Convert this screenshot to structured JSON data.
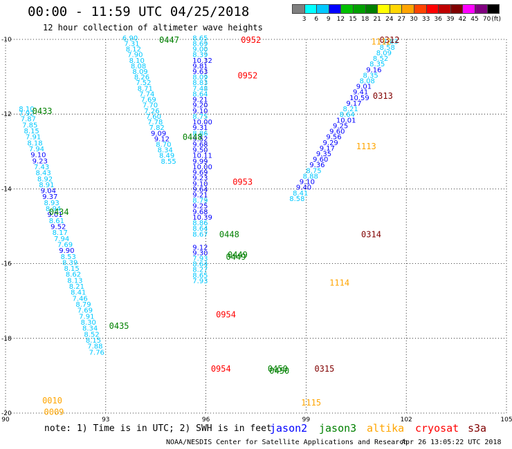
{
  "header": {
    "title": "00:00 - 11:59 UTC 04/25/2018",
    "subtitle": "12 hour collection of altimeter wave heights"
  },
  "legend": {
    "unit": "(ft)",
    "bins": [
      {
        "color": "#7f7f7f",
        "label": "3"
      },
      {
        "color": "#00ffff",
        "label": "6"
      },
      {
        "color": "#00c8ff",
        "label": "9"
      },
      {
        "color": "#0000ff",
        "label": "12"
      },
      {
        "color": "#00c000",
        "label": "15"
      },
      {
        "color": "#00a000",
        "label": "18"
      },
      {
        "color": "#008000",
        "label": "21"
      },
      {
        "color": "#ffff00",
        "label": "24"
      },
      {
        "color": "#ffd700",
        "label": "27"
      },
      {
        "color": "#ffa500",
        "label": "30"
      },
      {
        "color": "#ff4500",
        "label": "33"
      },
      {
        "color": "#ff0000",
        "label": "36"
      },
      {
        "color": "#c00000",
        "label": "39"
      },
      {
        "color": "#800000",
        "label": "42"
      },
      {
        "color": "#ff00ff",
        "label": "45"
      },
      {
        "color": "#800080",
        "label": "70"
      },
      {
        "color": "#000000",
        "label": ""
      }
    ]
  },
  "chart_data": {
    "type": "scatter",
    "title": "00:00 - 11:59 UTC 04/25/2018",
    "subtitle": "12 hour collection of altimeter wave heights",
    "xlim": [
      90,
      105
    ],
    "ylim": [
      -20,
      -10
    ],
    "x_ticks": [
      "90",
      "93",
      "96",
      "99",
      "102",
      "105"
    ],
    "y_ticks": [
      "-10",
      "-12",
      "-14",
      "-16",
      "-18",
      "-20"
    ],
    "colors": {
      "jason2": "#0000ff",
      "jason3": "#008000",
      "altika": "#ffa500",
      "cryosat": "#ff0000",
      "s3a": "#800000",
      "swh_low": "#00c8ff",
      "swh_mid": "#0000ff",
      "swh_high": "#00a000"
    },
    "time_labels": [
      {
        "text": "0447",
        "x": 94.6,
        "y": -10.0,
        "sat": "jason3"
      },
      {
        "text": "0952",
        "x": 97.05,
        "y": -10.0,
        "sat": "cryosat"
      },
      {
        "text": "0312",
        "x": 101.2,
        "y": -10.0,
        "sat": "s3a"
      },
      {
        "text": "1112",
        "x": 100.95,
        "y": -10.05,
        "sat": "altika"
      },
      {
        "text": "0952",
        "x": 96.95,
        "y": -10.95,
        "sat": "cryosat"
      },
      {
        "text": "0313",
        "x": 101.0,
        "y": -11.5,
        "sat": "s3a"
      },
      {
        "text": "0433",
        "x": 90.8,
        "y": -11.9,
        "sat": "jason3"
      },
      {
        "text": "0448",
        "x": 95.3,
        "y": -12.6,
        "sat": "jason3"
      },
      {
        "text": "1113",
        "x": 100.5,
        "y": -12.85,
        "sat": "altika"
      },
      {
        "text": "0953",
        "x": 96.8,
        "y": -13.8,
        "sat": "cryosat"
      },
      {
        "text": "0434",
        "x": 91.3,
        "y": -14.6,
        "sat": "jason3"
      },
      {
        "text": "0448",
        "x": 96.4,
        "y": -15.2,
        "sat": "jason3"
      },
      {
        "text": "0314",
        "x": 100.65,
        "y": -15.2,
        "sat": "s3a"
      },
      {
        "text": "0449",
        "x": 96.65,
        "y": -15.75,
        "sat": "jason3"
      },
      {
        "text": "0449",
        "x": 96.6,
        "y": -15.8,
        "sat": "jason3"
      },
      {
        "text": "1114",
        "x": 99.7,
        "y": -16.5,
        "sat": "altika"
      },
      {
        "text": "0954",
        "x": 96.3,
        "y": -17.35,
        "sat": "cryosat"
      },
      {
        "text": "0435",
        "x": 93.1,
        "y": -17.65,
        "sat": "jason3"
      },
      {
        "text": "0954",
        "x": 96.15,
        "y": -18.8,
        "sat": "cryosat"
      },
      {
        "text": "0450",
        "x": 97.85,
        "y": -18.8,
        "sat": "jason3"
      },
      {
        "text": "0450",
        "x": 97.9,
        "y": -18.85,
        "sat": "jason3"
      },
      {
        "text": "0315",
        "x": 99.25,
        "y": -18.8,
        "sat": "s3a"
      },
      {
        "text": "1115",
        "x": 98.85,
        "y": -19.7,
        "sat": "altika"
      },
      {
        "text": "0010",
        "x": 91.1,
        "y": -19.65,
        "sat": "altika"
      },
      {
        "text": "0009",
        "x": 91.15,
        "y": -19.95,
        "sat": "altika"
      }
    ],
    "tracks": [
      {
        "name": "track-a",
        "points": [
          {
            "x": 90.4,
            "y": -11.85,
            "v": "8.10"
          },
          {
            "x": 90.4,
            "y": -11.97,
            "v": "7.92"
          },
          {
            "x": 90.45,
            "y": -12.12,
            "v": "7.87"
          },
          {
            "x": 90.5,
            "y": -12.28,
            "v": "7.85"
          },
          {
            "x": 90.55,
            "y": -12.44,
            "v": "8.15"
          },
          {
            "x": 90.6,
            "y": -12.6,
            "v": "7.91"
          },
          {
            "x": 90.65,
            "y": -12.76,
            "v": "8.18"
          },
          {
            "x": 90.7,
            "y": -12.92,
            "v": "7.94"
          },
          {
            "x": 90.75,
            "y": -13.08,
            "v": "9.10",
            "d": 1
          },
          {
            "x": 90.8,
            "y": -13.24,
            "v": "9.23",
            "d": 1
          },
          {
            "x": 90.85,
            "y": -13.4,
            "v": "7.43"
          },
          {
            "x": 90.9,
            "y": -13.56,
            "v": "8.43"
          },
          {
            "x": 90.95,
            "y": -13.72,
            "v": "8.92"
          },
          {
            "x": 91.0,
            "y": -13.88,
            "v": "8.91"
          },
          {
            "x": 91.05,
            "y": -14.04,
            "v": "9.04",
            "d": 1
          },
          {
            "x": 91.1,
            "y": -14.2,
            "v": "9.37",
            "d": 1
          },
          {
            "x": 91.15,
            "y": -14.36,
            "v": "8.93"
          },
          {
            "x": 91.2,
            "y": -14.52,
            "v": "8.94"
          },
          {
            "x": 91.25,
            "y": -14.68,
            "v": "9.01",
            "d": 1
          },
          {
            "x": 91.3,
            "y": -14.84,
            "v": "8.61"
          },
          {
            "x": 91.35,
            "y": -15.0,
            "v": "9.52",
            "d": 1
          },
          {
            "x": 91.4,
            "y": -15.16,
            "v": "8.17"
          },
          {
            "x": 91.45,
            "y": -15.32,
            "v": "7.94"
          },
          {
            "x": 91.55,
            "y": -15.48,
            "v": "7.69"
          },
          {
            "x": 91.6,
            "y": -15.64,
            "v": "9.90",
            "d": 1
          },
          {
            "x": 91.65,
            "y": -15.8,
            "v": "8.53"
          },
          {
            "x": 91.7,
            "y": -15.96,
            "v": "8.39"
          },
          {
            "x": 91.75,
            "y": -16.12,
            "v": "8.15"
          },
          {
            "x": 91.8,
            "y": -16.28,
            "v": "8.62"
          },
          {
            "x": 91.85,
            "y": -16.44,
            "v": "8.13"
          },
          {
            "x": 91.9,
            "y": -16.6,
            "v": "8.21"
          },
          {
            "x": 91.95,
            "y": -16.76,
            "v": "8.41"
          },
          {
            "x": 92.0,
            "y": -16.92,
            "v": "7.46"
          },
          {
            "x": 92.1,
            "y": -17.08,
            "v": "8.79"
          },
          {
            "x": 92.15,
            "y": -17.24,
            "v": "7.69"
          },
          {
            "x": 92.2,
            "y": -17.4,
            "v": "7.91"
          },
          {
            "x": 92.25,
            "y": -17.56,
            "v": "8.30"
          },
          {
            "x": 92.3,
            "y": -17.72,
            "v": "8.34"
          },
          {
            "x": 92.35,
            "y": -17.88,
            "v": "8.52"
          },
          {
            "x": 92.4,
            "y": -18.04,
            "v": "8.15"
          },
          {
            "x": 92.45,
            "y": -18.2,
            "v": "7.88"
          },
          {
            "x": 92.5,
            "y": -18.36,
            "v": "7.76"
          }
        ]
      },
      {
        "name": "track-b",
        "points": [
          {
            "x": 93.5,
            "y": -9.95,
            "v": "6.90"
          },
          {
            "x": 93.55,
            "y": -10.1,
            "v": "7.31"
          },
          {
            "x": 93.6,
            "y": -10.25,
            "v": "8.12"
          },
          {
            "x": 93.65,
            "y": -10.4,
            "v": "7.90"
          },
          {
            "x": 93.7,
            "y": -10.55,
            "v": "8.10"
          },
          {
            "x": 93.75,
            "y": -10.7,
            "v": "8.08"
          },
          {
            "x": 93.8,
            "y": -10.85,
            "v": "8.09"
          },
          {
            "x": 93.85,
            "y": -11.0,
            "v": "8.26"
          },
          {
            "x": 93.9,
            "y": -11.15,
            "v": "7.52"
          },
          {
            "x": 93.95,
            "y": -11.3,
            "v": "8.71"
          },
          {
            "x": 94.0,
            "y": -11.45,
            "v": "7.74"
          },
          {
            "x": 94.05,
            "y": -11.6,
            "v": "7.69"
          },
          {
            "x": 94.1,
            "y": -11.75,
            "v": "7.70"
          },
          {
            "x": 94.15,
            "y": -11.9,
            "v": "7.26"
          },
          {
            "x": 94.2,
            "y": -12.05,
            "v": "7.60"
          },
          {
            "x": 94.25,
            "y": -12.2,
            "v": "7.78"
          },
          {
            "x": 94.3,
            "y": -12.35,
            "v": "7.82"
          },
          {
            "x": 94.35,
            "y": -12.5,
            "v": "9.09",
            "d": 1
          },
          {
            "x": 94.45,
            "y": -12.65,
            "v": "9.12",
            "d": 1
          },
          {
            "x": 94.5,
            "y": -12.8,
            "v": "8.70"
          },
          {
            "x": 94.55,
            "y": -12.95,
            "v": "8.34"
          },
          {
            "x": 94.6,
            "y": -13.1,
            "v": "8.49"
          },
          {
            "x": 94.65,
            "y": -13.25,
            "v": "8.55"
          }
        ]
      },
      {
        "name": "track-c",
        "points": [
          {
            "x": 95.6,
            "y": -9.95,
            "v": "8.65"
          },
          {
            "x": 95.6,
            "y": -10.1,
            "v": "8.69"
          },
          {
            "x": 95.6,
            "y": -10.25,
            "v": "9.00"
          },
          {
            "x": 95.6,
            "y": -10.4,
            "v": "8.39"
          },
          {
            "x": 95.6,
            "y": -10.55,
            "v": "10.32",
            "d": 1
          },
          {
            "x": 95.6,
            "y": -10.7,
            "v": "9.81",
            "d": 1
          },
          {
            "x": 95.6,
            "y": -10.85,
            "v": "9.63",
            "d": 1
          },
          {
            "x": 95.6,
            "y": -11.0,
            "v": "8.09"
          },
          {
            "x": 95.6,
            "y": -11.15,
            "v": "8.83"
          },
          {
            "x": 95.6,
            "y": -11.3,
            "v": "7.48"
          },
          {
            "x": 95.6,
            "y": -11.45,
            "v": "8.64"
          },
          {
            "x": 95.6,
            "y": -11.6,
            "v": "9.21",
            "d": 1
          },
          {
            "x": 95.6,
            "y": -11.75,
            "v": "9.20",
            "d": 1
          },
          {
            "x": 95.6,
            "y": -11.9,
            "v": "9.10",
            "d": 1
          },
          {
            "x": 95.6,
            "y": -12.05,
            "v": "8.75"
          },
          {
            "x": 95.6,
            "y": -12.2,
            "v": "10.00",
            "d": 1
          },
          {
            "x": 95.6,
            "y": -12.35,
            "v": "9.31",
            "d": 1
          },
          {
            "x": 95.6,
            "y": -12.5,
            "v": "8.86"
          },
          {
            "x": 95.6,
            "y": -12.65,
            "v": "9.52",
            "d": 1
          },
          {
            "x": 95.6,
            "y": -12.8,
            "v": "9.68",
            "d": 1
          },
          {
            "x": 95.6,
            "y": -12.95,
            "v": "9.50",
            "d": 1
          },
          {
            "x": 95.6,
            "y": -13.1,
            "v": "10.11",
            "d": 1
          },
          {
            "x": 95.6,
            "y": -13.25,
            "v": "9.99",
            "d": 1
          },
          {
            "x": 95.6,
            "y": -13.4,
            "v": "10.00",
            "d": 1
          },
          {
            "x": 95.6,
            "y": -13.55,
            "v": "9.69",
            "d": 1
          },
          {
            "x": 95.6,
            "y": -13.7,
            "v": "9.23",
            "d": 1
          },
          {
            "x": 95.6,
            "y": -13.85,
            "v": "9.10",
            "d": 1
          },
          {
            "x": 95.6,
            "y": -14.0,
            "v": "9.64",
            "d": 1
          },
          {
            "x": 95.6,
            "y": -14.15,
            "v": "9.21",
            "d": 1
          },
          {
            "x": 95.6,
            "y": -14.3,
            "v": "8.79"
          },
          {
            "x": 95.6,
            "y": -14.45,
            "v": "9.25",
            "d": 1
          },
          {
            "x": 95.6,
            "y": -14.6,
            "v": "9.68",
            "d": 1
          },
          {
            "x": 95.6,
            "y": -14.75,
            "v": "10.39",
            "d": 1
          },
          {
            "x": 95.6,
            "y": -14.9,
            "v": "8.86"
          },
          {
            "x": 95.6,
            "y": -15.05,
            "v": "8.64"
          },
          {
            "x": 95.6,
            "y": -15.2,
            "v": "8.67"
          },
          {
            "x": 95.6,
            "y": -15.55,
            "v": "9.12",
            "d": 1
          },
          {
            "x": 95.6,
            "y": -15.7,
            "v": "9.30",
            "d": 1
          },
          {
            "x": 95.6,
            "y": -15.85,
            "v": "7.93"
          },
          {
            "x": 95.6,
            "y": -16.0,
            "v": "8.64"
          },
          {
            "x": 95.6,
            "y": -16.15,
            "v": "8.27"
          },
          {
            "x": 95.6,
            "y": -16.3,
            "v": "8.65"
          },
          {
            "x": 95.6,
            "y": -16.45,
            "v": "7.93"
          }
        ]
      },
      {
        "name": "track-d",
        "points": [
          {
            "x": 101.3,
            "y": -10.05,
            "v": "7.83"
          },
          {
            "x": 101.2,
            "y": -10.2,
            "v": "8.58"
          },
          {
            "x": 101.1,
            "y": -10.35,
            "v": "8.09"
          },
          {
            "x": 101.0,
            "y": -10.5,
            "v": "8.52"
          },
          {
            "x": 100.9,
            "y": -10.65,
            "v": "8.35"
          },
          {
            "x": 100.8,
            "y": -10.8,
            "v": "9.16",
            "d": 1
          },
          {
            "x": 100.7,
            "y": -10.95,
            "v": "8.35"
          },
          {
            "x": 100.6,
            "y": -11.1,
            "v": "8.08"
          },
          {
            "x": 100.5,
            "y": -11.25,
            "v": "9.01",
            "d": 1
          },
          {
            "x": 100.4,
            "y": -11.4,
            "v": "9.41",
            "d": 1
          },
          {
            "x": 100.3,
            "y": -11.55,
            "v": "10.59",
            "d": 1
          },
          {
            "x": 100.2,
            "y": -11.7,
            "v": "9.17",
            "d": 1
          },
          {
            "x": 100.1,
            "y": -11.85,
            "v": "8.21"
          },
          {
            "x": 100.0,
            "y": -12.0,
            "v": "8.64"
          },
          {
            "x": 99.9,
            "y": -12.15,
            "v": "10.01",
            "d": 1
          },
          {
            "x": 99.8,
            "y": -12.3,
            "v": "9.25",
            "d": 1
          },
          {
            "x": 99.7,
            "y": -12.45,
            "v": "9.60",
            "d": 1
          },
          {
            "x": 99.6,
            "y": -12.6,
            "v": "9.56",
            "d": 1
          },
          {
            "x": 99.5,
            "y": -12.75,
            "v": "9.29",
            "d": 1
          },
          {
            "x": 99.4,
            "y": -12.9,
            "v": "9.17",
            "d": 1
          },
          {
            "x": 99.3,
            "y": -13.05,
            "v": "9.35",
            "d": 1
          },
          {
            "x": 99.2,
            "y": -13.2,
            "v": "9.60",
            "d": 1
          },
          {
            "x": 99.1,
            "y": -13.35,
            "v": "9.36",
            "d": 1
          },
          {
            "x": 99.0,
            "y": -13.5,
            "v": "8.75"
          },
          {
            "x": 98.9,
            "y": -13.65,
            "v": "8.88"
          },
          {
            "x": 98.8,
            "y": -13.8,
            "v": "9.10",
            "d": 1
          },
          {
            "x": 98.7,
            "y": -13.95,
            "v": "9.40",
            "d": 1
          },
          {
            "x": 98.6,
            "y": -14.1,
            "v": "8.41"
          },
          {
            "x": 98.5,
            "y": -14.25,
            "v": "8.58"
          }
        ]
      }
    ]
  },
  "notes": {
    "text": "note: 1) Time is in UTC; 2) SWH is in feet",
    "credit": "NOAA/NESDIS Center for Satellite Applications and Research",
    "timestamp": "Apr 26 13:05:22 UTC 2018",
    "satellites": [
      {
        "label": "jason2",
        "color": "#0000ff"
      },
      {
        "label": "jason3",
        "color": "#008000"
      },
      {
        "label": "altika",
        "color": "#ffa500"
      },
      {
        "label": "cryosat",
        "color": "#ff0000"
      },
      {
        "label": "s3a",
        "color": "#800000"
      }
    ]
  }
}
